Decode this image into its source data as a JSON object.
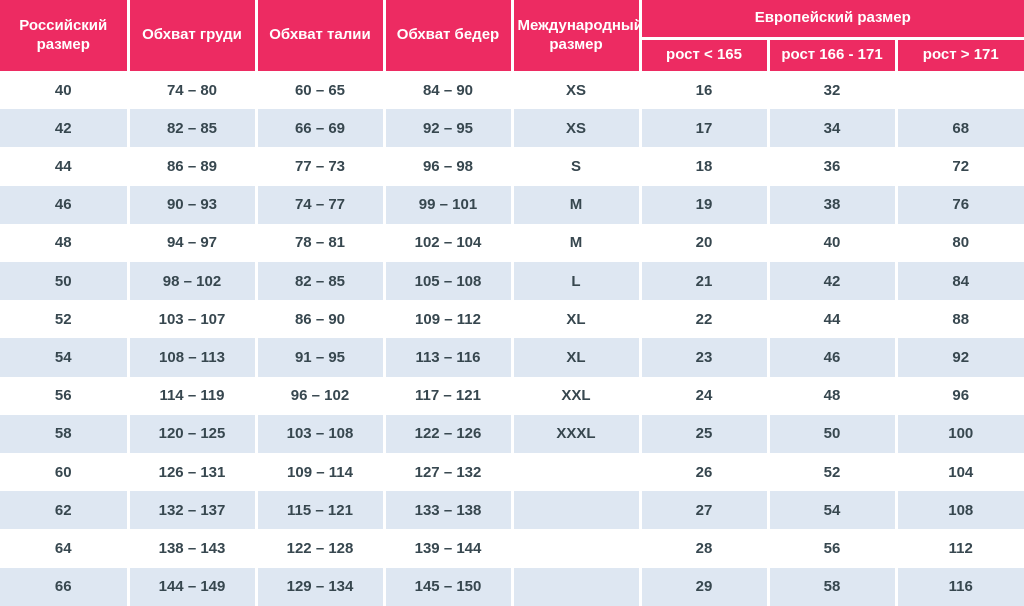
{
  "colors": {
    "header_bg": "#ED2B62",
    "header_text": "#FFFFFF",
    "stripe_bg": "#DEE7F2",
    "row_bg": "#FFFFFF",
    "cell_text": "#37474F",
    "divider": "#FFFFFF"
  },
  "chart_data": {
    "type": "table",
    "header": {
      "russian_size": "Российский размер",
      "chest": "Обхват груди",
      "waist": "Обхват талии",
      "hips": "Обхват бедер",
      "international_size": "Международный размер",
      "european_size": "Европейский размер",
      "height_under_165": "рост < 165",
      "height_166_171": "рост 166 - 171",
      "height_over_171": "рост > 171"
    },
    "rows": [
      [
        "40",
        "74 – 80",
        "60 – 65",
        "84 – 90",
        "XS",
        "16",
        "32",
        ""
      ],
      [
        "42",
        "82 – 85",
        "66 – 69",
        "92 – 95",
        "XS",
        "17",
        "34",
        "68"
      ],
      [
        "44",
        "86 – 89",
        "77 – 73",
        "96 – 98",
        "S",
        "18",
        "36",
        "72"
      ],
      [
        "46",
        "90 – 93",
        "74 – 77",
        "99 – 101",
        "M",
        "19",
        "38",
        "76"
      ],
      [
        "48",
        "94 – 97",
        "78 – 81",
        "102 – 104",
        "M",
        "20",
        "40",
        "80"
      ],
      [
        "50",
        "98 – 102",
        "82 – 85",
        "105 – 108",
        "L",
        "21",
        "42",
        "84"
      ],
      [
        "52",
        "103 – 107",
        "86 – 90",
        "109 – 112",
        "XL",
        "22",
        "44",
        "88"
      ],
      [
        "54",
        "108 – 113",
        "91 – 95",
        "113 – 116",
        "XL",
        "23",
        "46",
        "92"
      ],
      [
        "56",
        "114 – 119",
        "96 – 102",
        "117 – 121",
        "XXL",
        "24",
        "48",
        "96"
      ],
      [
        "58",
        "120 – 125",
        "103 – 108",
        "122 – 126",
        "XXXL",
        "25",
        "50",
        "100"
      ],
      [
        "60",
        "126 – 131",
        "109 – 114",
        "127 – 132",
        "",
        "26",
        "52",
        "104"
      ],
      [
        "62",
        "132 – 137",
        "115 – 121",
        "133 – 138",
        "",
        "27",
        "54",
        "108"
      ],
      [
        "64",
        "138 – 143",
        "122 – 128",
        "139 – 144",
        "",
        "28",
        "56",
        "112"
      ],
      [
        "66",
        "144 – 149",
        "129 – 134",
        "145 – 150",
        "",
        "29",
        "58",
        "116"
      ]
    ]
  }
}
